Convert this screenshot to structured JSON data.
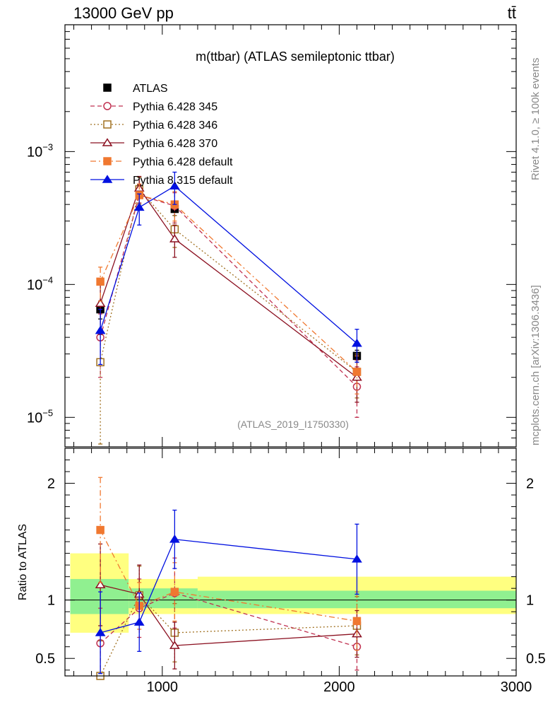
{
  "header": {
    "left": "13000 GeV pp",
    "right": "tt̄"
  },
  "side_labels": {
    "rivet": "Rivet 4.1.0, ≥ 100k events",
    "mcplots": "mcplots.cern.ch [arXiv:1306.3436]"
  },
  "chart_data": [
    {
      "panel": "main",
      "type": "line",
      "title": "m(ttbar) (ATLAS semileptonic ttbar)",
      "analysis_tag": "(ATLAS_2019_I1750330)",
      "xlabel": "",
      "ylabel": "",
      "yscale": "log",
      "xlim": [
        450,
        3000
      ],
      "ylim": [
        6e-06,
        0.009
      ],
      "y_tick_labels": [
        "10^-5",
        "10^-4",
        "10^-3"
      ],
      "x": [
        650,
        870,
        1070,
        2100
      ],
      "series": [
        {
          "name": "ATLAS",
          "color": "#000000",
          "marker": "square-filled",
          "line": "none",
          "values": [
            6.5e-05,
            0.00051,
            0.00037,
            2.9e-05
          ],
          "err": [
            1e-05,
            5e-05,
            4e-05,
            3e-06
          ]
        },
        {
          "name": "Pythia 6.428 345",
          "color": "#c03050",
          "marker": "circle-open",
          "line": "dash",
          "values": [
            4e-05,
            0.00047,
            0.00039,
            1.7e-05
          ],
          "err": [
            2e-05,
            0.0001,
            0.0001,
            7e-06
          ]
        },
        {
          "name": "Pythia 6.428 346",
          "color": "#a07020",
          "marker": "square-open",
          "line": "dot",
          "values": [
            2.6e-05,
            0.00052,
            0.00026,
            2.2e-05
          ],
          "err": [
            2e-05,
            0.00012,
            7e-05,
            8e-06
          ]
        },
        {
          "name": "Pythia 6.428 370",
          "color": "#8b1020",
          "marker": "triangle-open",
          "line": "solid",
          "values": [
            7.2e-05,
            0.00053,
            0.00022,
            2e-05
          ],
          "err": [
            3e-05,
            0.00012,
            6e-05,
            7e-06
          ]
        },
        {
          "name": "Pythia 6.428 default",
          "color": "#f07830",
          "marker": "square-filled",
          "line": "dashdot",
          "values": [
            0.000105,
            0.00047,
            0.0004,
            2.2e-05
          ],
          "err": [
            3e-05,
            0.0001,
            0.0001,
            7e-06
          ]
        },
        {
          "name": "Pythia 8.315 default",
          "color": "#0010e0",
          "marker": "triangle-filled",
          "line": "solid",
          "values": [
            4.5e-05,
            0.00038,
            0.00055,
            3.6e-05
          ],
          "err": [
            2e-05,
            0.0001,
            0.00015,
            1e-05
          ]
        }
      ]
    },
    {
      "panel": "ratio",
      "type": "line",
      "ylabel": "Ratio to ATLAS",
      "xlim": [
        450,
        3000
      ],
      "ylim": [
        0.35,
        2.3
      ],
      "x_ticks": [
        1000,
        2000,
        3000
      ],
      "y_ticks": [
        0.5,
        1,
        2
      ],
      "x": [
        650,
        870,
        1070,
        2100
      ],
      "bands": {
        "bins": [
          [
            480,
            810
          ],
          [
            810,
            1200
          ],
          [
            1200,
            3000
          ]
        ],
        "inner": [
          [
            0.88,
            1.18
          ],
          [
            0.93,
            1.1
          ],
          [
            0.93,
            1.08
          ]
        ],
        "outer": [
          [
            0.72,
            1.4
          ],
          [
            0.88,
            1.18
          ],
          [
            0.88,
            1.2
          ]
        ]
      },
      "series": [
        {
          "name": "Pythia 6.428 345",
          "color": "#c03050",
          "marker": "circle-open",
          "line": "dash",
          "values": [
            0.63,
            0.93,
            1.06,
            0.6
          ],
          "err": [
            0.3,
            0.25,
            0.3,
            0.2
          ]
        },
        {
          "name": "Pythia 6.428 346",
          "color": "#a07020",
          "marker": "square-open",
          "line": "dot",
          "values": [
            0.35,
            1.04,
            0.72,
            0.78
          ],
          "err": [
            0.3,
            0.25,
            0.25,
            0.25
          ]
        },
        {
          "name": "Pythia 6.428 370",
          "color": "#8b1020",
          "marker": "triangle-open",
          "line": "solid",
          "values": [
            1.13,
            1.05,
            0.61,
            0.71
          ],
          "err": [
            0.35,
            0.25,
            0.2,
            0.2
          ]
        },
        {
          "name": "Pythia 6.428 default",
          "color": "#f07830",
          "marker": "square-filled",
          "line": "dashdot",
          "values": [
            1.6,
            0.95,
            1.07,
            0.82
          ],
          "err": [
            0.45,
            0.2,
            0.25,
            0.25
          ]
        },
        {
          "name": "Pythia 8.315 default",
          "color": "#0010e0",
          "marker": "triangle-filled",
          "line": "solid",
          "values": [
            0.72,
            0.81,
            1.52,
            1.35
          ],
          "err": [
            0.35,
            0.25,
            0.25,
            0.3
          ]
        }
      ]
    }
  ]
}
